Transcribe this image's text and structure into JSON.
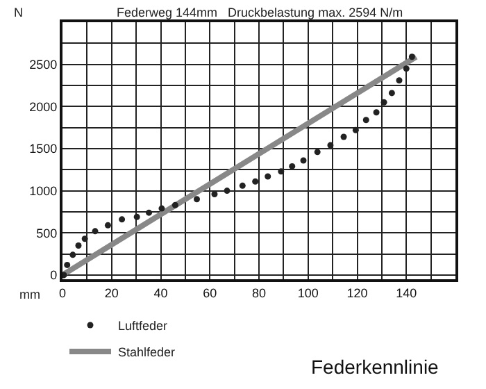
{
  "chart_data": {
    "type": "scatter",
    "title": "Federkennlinie",
    "subtitle": "Federweg 144mm   Druckbelastung max. 2594 N/m",
    "xlabel": "mm",
    "ylabel": "N",
    "series": [
      {
        "name": "Luftfeder",
        "color": "#222222",
        "marker": "circle",
        "x": [
          0.6,
          1.9,
          4.2,
          6.5,
          9.1,
          13.3,
          18.5,
          24.2,
          30.3,
          35.2,
          40.4,
          45.9,
          54.7,
          61.9,
          67,
          73.3,
          78.5,
          83.6,
          89,
          93.5,
          98.1,
          103.8,
          109.1,
          114.5,
          119.4,
          123.6,
          127.8,
          130.9,
          134.1,
          137.1,
          140,
          142.3
        ],
        "values": [
          0,
          120,
          240,
          350,
          430,
          520,
          590,
          660,
          690,
          740,
          790,
          830,
          900,
          960,
          1000,
          1060,
          1110,
          1170,
          1230,
          1290,
          1360,
          1460,
          1540,
          1640,
          1720,
          1840,
          1930,
          2050,
          2160,
          2310,
          2450,
          2590
        ]
      },
      {
        "name": "Stahlfeder",
        "type": "line",
        "color": "#888888",
        "line_style": "solid",
        "x": [
          0,
          144
        ],
        "values": [
          0,
          2590
        ]
      }
    ],
    "xlim": [
      0,
      160
    ],
    "ylim": [
      -50,
      3000
    ],
    "xticks": [
      0,
      {
        "value": 10,
        "label": null
      },
      20,
      {
        "value": 30,
        "label": null
      },
      40,
      {
        "value": 50,
        "label": null
      },
      60,
      {
        "value": 70,
        "label": null
      },
      80,
      {
        "value": 90,
        "label": null
      },
      100,
      {
        "value": 110,
        "label": null
      },
      120,
      {
        "value": 130,
        "label": null
      },
      140,
      {
        "value": 150,
        "label": null
      },
      {
        "value": 160,
        "label": null
      }
    ],
    "yticks": [
      0,
      {
        "value": 250,
        "label": null
      },
      500,
      {
        "value": 750,
        "label": null
      },
      1000,
      {
        "value": 1250,
        "label": null
      },
      1500,
      {
        "value": 1750,
        "label": null
      },
      2000,
      {
        "value": 2250,
        "label": null
      },
      2500,
      {
        "value": 2750,
        "label": null
      },
      {
        "value": 3000,
        "label": null
      }
    ],
    "grid": true,
    "legend": "bottom left"
  }
}
